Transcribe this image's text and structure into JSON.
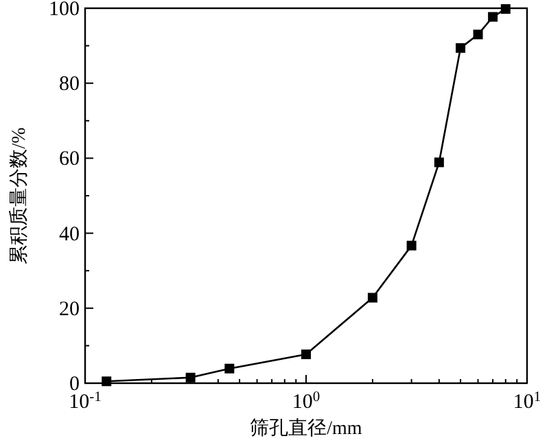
{
  "chart_data": {
    "type": "line",
    "xlabel": "筛孔直径/mm",
    "ylabel": "累积质量分数/%",
    "log": "x",
    "marker": "square",
    "line_style": "solid",
    "x": [
      0.125,
      0.3,
      0.45,
      1,
      2,
      3,
      4,
      5,
      6,
      7,
      8
    ],
    "series": [
      {
        "color": "#000000",
        "values": [
          0.5,
          1.5,
          3.9,
          7.7,
          22.8,
          36.7,
          58.9,
          89.4,
          93,
          97.7,
          99.8
        ]
      }
    ],
    "xlim": [
      0.1,
      10
    ],
    "xticks": [
      {
        "value": 0.1,
        "label": "10$^{-1}$"
      },
      {
        "value": 1,
        "label": "10$^{0}$"
      },
      {
        "value": 10,
        "label": "10$^{1}$"
      }
    ],
    "ylim": [
      0,
      100
    ],
    "yticks": [
      0,
      20,
      40,
      60,
      80,
      100
    ]
  }
}
